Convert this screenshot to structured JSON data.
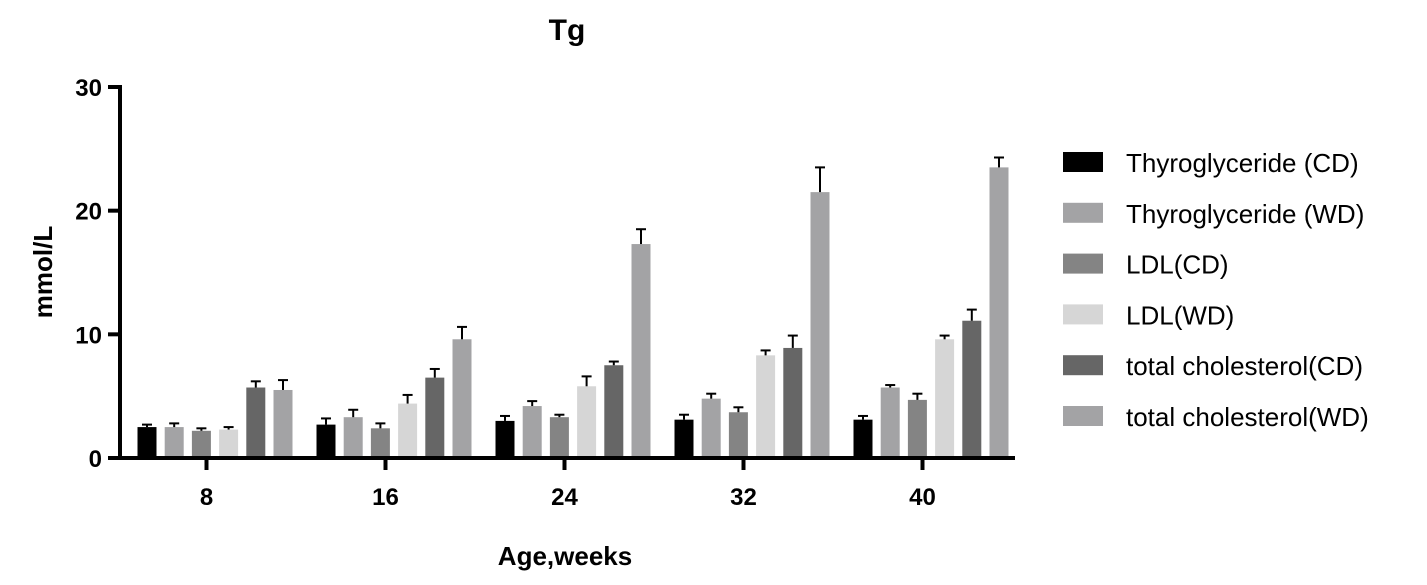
{
  "chart_data": {
    "type": "bar",
    "title": "Tg",
    "xlabel": "Age,weeks",
    "ylabel": "mmol/L",
    "ylim": [
      0,
      30
    ],
    "yticks": [
      0,
      10,
      20,
      30
    ],
    "categories": [
      "8",
      "16",
      "24",
      "32",
      "40"
    ],
    "error_bars": true,
    "grid": false,
    "legend_position": "right",
    "series": [
      {
        "name": "Thyroglyceride (CD)",
        "color": "#000000",
        "values": [
          2.5,
          2.7,
          3.0,
          3.1,
          3.1
        ],
        "errors": [
          0.2,
          0.5,
          0.4,
          0.4,
          0.3
        ]
      },
      {
        "name": "Thyroglyceride (WD)",
        "color": "#a3a3a5",
        "values": [
          2.5,
          3.3,
          4.2,
          4.8,
          5.7
        ],
        "errors": [
          0.3,
          0.6,
          0.4,
          0.4,
          0.2
        ]
      },
      {
        "name": "LDL(CD)",
        "color": "#848484",
        "values": [
          2.2,
          2.4,
          3.3,
          3.7,
          4.7
        ],
        "errors": [
          0.2,
          0.4,
          0.2,
          0.4,
          0.5
        ]
      },
      {
        "name": "LDL(WD)",
        "color": "#d6d6d6",
        "values": [
          2.3,
          4.4,
          5.8,
          8.3,
          9.6
        ],
        "errors": [
          0.2,
          0.7,
          0.8,
          0.4,
          0.3
        ]
      },
      {
        "name": "total cholesterol(CD)",
        "color": "#666666",
        "values": [
          5.7,
          6.5,
          7.5,
          8.9,
          11.1
        ],
        "errors": [
          0.5,
          0.7,
          0.3,
          1.0,
          0.9
        ]
      },
      {
        "name": "total cholesterol(WD)",
        "color": "#a3a3a5",
        "values": [
          5.5,
          9.6,
          17.3,
          21.5,
          23.5
        ],
        "errors": [
          0.8,
          1.0,
          1.2,
          2.0,
          0.8
        ]
      }
    ]
  }
}
